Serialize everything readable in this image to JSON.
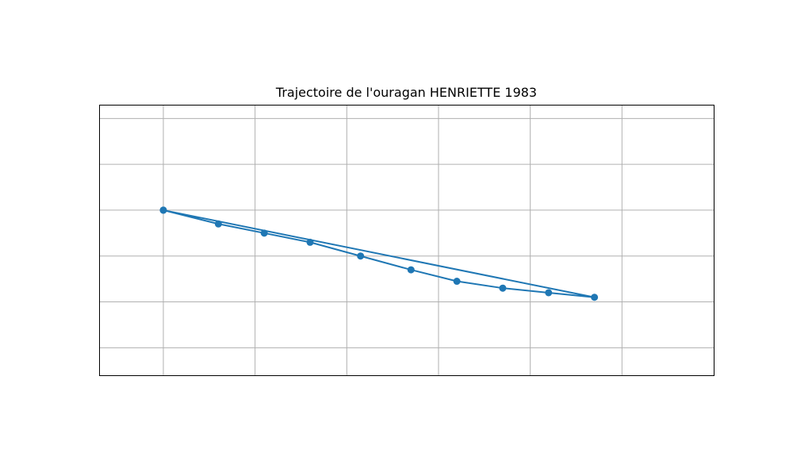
{
  "chart_data": {
    "type": "line",
    "title": "Trajectoire de l'ouragan HENRIETTE 1983",
    "xlabel": "",
    "ylabel": "",
    "xlim": [
      -114.2,
      -107.5
    ],
    "ylim": [
      14.6,
      20.5
    ],
    "x_gridlines": [
      -113.5,
      -112.5,
      -111.5,
      -110.5,
      -109.5,
      -108.5
    ],
    "y_gridlines": [
      15.2,
      16.2,
      17.2,
      18.2,
      19.2,
      20.2
    ],
    "grid": true,
    "series": [
      {
        "color": "#1f77b4",
        "marker": "circle",
        "points": [
          {
            "x": -113.5,
            "y": 18.2
          },
          {
            "x": -112.9,
            "y": 17.9
          },
          {
            "x": -112.4,
            "y": 17.7
          },
          {
            "x": -111.9,
            "y": 17.5
          },
          {
            "x": -111.35,
            "y": 17.2
          },
          {
            "x": -110.8,
            "y": 16.9
          },
          {
            "x": -110.3,
            "y": 16.65
          },
          {
            "x": -109.8,
            "y": 16.5
          },
          {
            "x": -109.3,
            "y": 16.4
          },
          {
            "x": -108.8,
            "y": 16.3
          },
          {
            "x": -113.5,
            "y": 18.2
          }
        ]
      }
    ]
  }
}
